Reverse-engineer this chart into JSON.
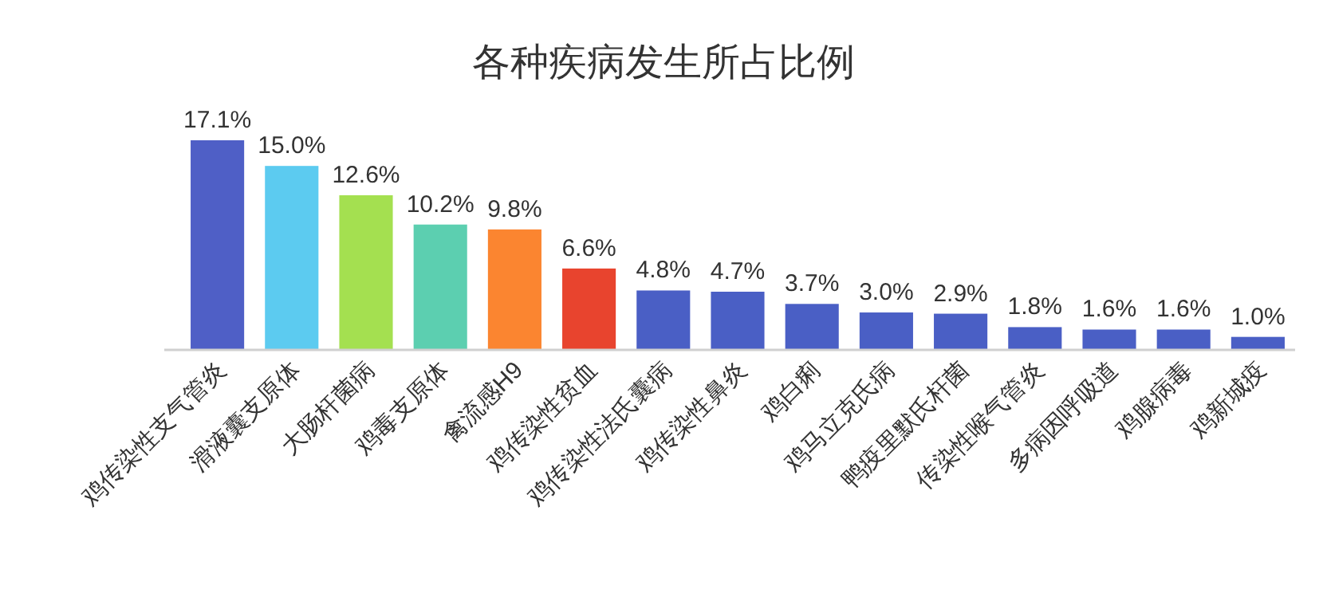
{
  "chart_data": {
    "type": "bar",
    "title": "各种疾病发生所占比例",
    "categories": [
      "鸡传染性支气管炎",
      "滑液囊支原体",
      "大肠杆菌病",
      "鸡毒支原体",
      "禽流感H9",
      "鸡传染性贫血",
      "鸡传染性法氏囊病",
      "鸡传染性鼻炎",
      "鸡白痢",
      "鸡马立克氏病",
      "鸭疫里默氏杆菌",
      "传染性喉气管炎",
      "多病因呼吸道",
      "鸡腺病毒",
      "鸡新城疫"
    ],
    "values": [
      17.1,
      15.0,
      12.6,
      10.2,
      9.8,
      6.6,
      4.8,
      4.7,
      3.7,
      3.0,
      2.9,
      1.8,
      1.6,
      1.6,
      1.0
    ],
    "value_labels": [
      "17.1%",
      "15.0%",
      "12.6%",
      "10.2%",
      "9.8%",
      "6.6%",
      "4.8%",
      "4.7%",
      "3.7%",
      "3.0%",
      "2.9%",
      "1.8%",
      "1.6%",
      "1.6%",
      "1.0%"
    ],
    "colors": [
      "#4f5fc6",
      "#5ccbf0",
      "#a4e050",
      "#5ccfb0",
      "#fb8530",
      "#e8442e",
      "#4a5fc5",
      "#4a5fc5",
      "#4a5fc5",
      "#4a5fc5",
      "#4a5fc5",
      "#4a5fc5",
      "#4a5fc5",
      "#4a5fc5",
      "#4a5fc5"
    ]
  }
}
